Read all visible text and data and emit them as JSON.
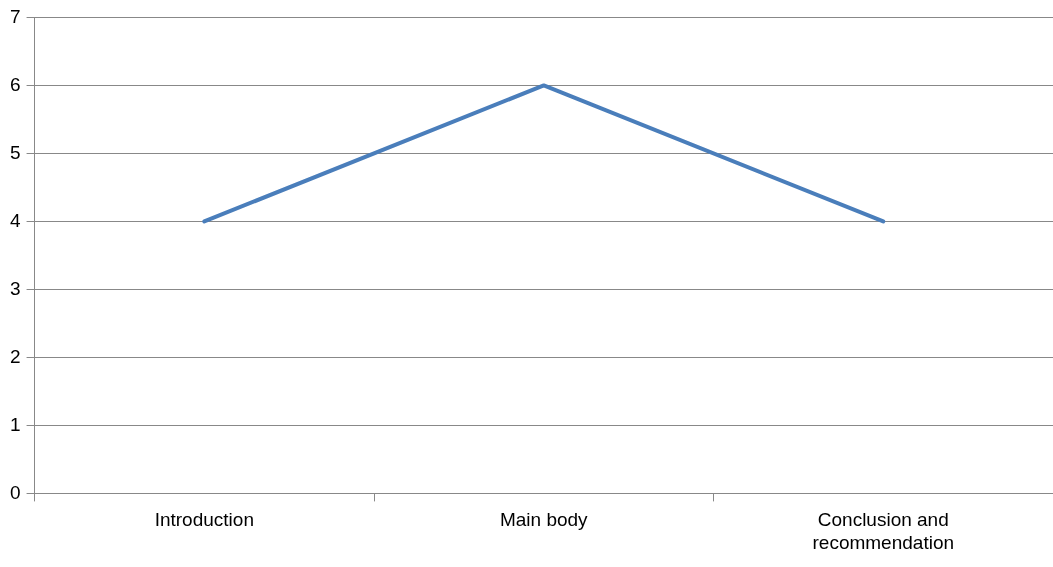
{
  "chart_data": {
    "type": "line",
    "categories": [
      "Introduction",
      "Main body",
      "Conclusion and recommendation"
    ],
    "series": [
      {
        "color": "#4a7ebb",
        "values": [
          4,
          6,
          4
        ]
      }
    ],
    "ylim": [
      0,
      7
    ],
    "yticks": [
      0,
      1,
      2,
      3,
      4,
      5,
      6,
      7
    ],
    "grid": "y",
    "legend": false,
    "marker": "none",
    "line_style": "solid"
  }
}
